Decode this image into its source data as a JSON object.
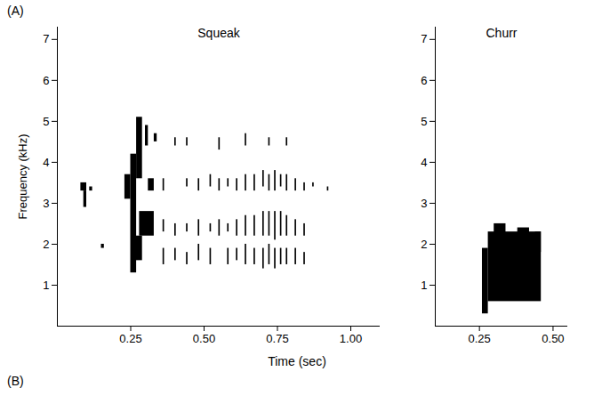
{
  "chart_data": [
    {
      "type": "spectrogram",
      "title": "Squeak",
      "xlabel": "Time (sec)",
      "ylabel": "Frequency (kHz)",
      "annotations": [
        "(A)",
        "(B)"
      ],
      "xlim": [
        0,
        1.1
      ],
      "xticks": [
        0.25,
        {
          "value": 0.5,
          "label": "0.50"
        },
        0.75,
        {
          "value": 1.0,
          "label": "1.00"
        }
      ],
      "ylim": [
        0,
        7.3
      ],
      "yticks": [
        1,
        2,
        3,
        4,
        5,
        6,
        7
      ],
      "color": "#000000",
      "grid": false,
      "energy": [
        [
          0.08,
          0.1,
          3.3,
          3.5
        ],
        [
          0.09,
          0.1,
          2.9,
          3.3
        ],
        [
          0.11,
          0.12,
          3.3,
          3.4
        ],
        [
          0.15,
          0.16,
          1.9,
          2.0
        ],
        [
          0.23,
          0.25,
          3.1,
          3.7
        ],
        [
          0.25,
          0.27,
          1.3,
          4.2
        ],
        [
          0.27,
          0.29,
          3.6,
          5.1
        ],
        [
          0.26,
          0.29,
          1.6,
          2.2
        ],
        [
          0.28,
          0.33,
          2.2,
          2.8
        ],
        [
          0.3,
          0.31,
          4.4,
          4.9
        ],
        [
          0.33,
          0.34,
          4.5,
          4.7
        ],
        [
          0.31,
          0.33,
          3.3,
          3.6
        ],
        [
          0.36,
          0.365,
          3.3,
          3.6
        ],
        [
          0.36,
          0.365,
          2.3,
          2.6
        ],
        [
          0.36,
          0.365,
          1.5,
          1.9
        ],
        [
          0.4,
          0.405,
          4.4,
          4.6
        ],
        [
          0.4,
          0.405,
          2.2,
          2.5
        ],
        [
          0.4,
          0.405,
          1.6,
          1.9
        ],
        [
          0.44,
          0.445,
          4.4,
          4.6
        ],
        [
          0.44,
          0.445,
          3.4,
          3.6
        ],
        [
          0.44,
          0.445,
          2.3,
          2.5
        ],
        [
          0.44,
          0.445,
          1.5,
          1.8
        ],
        [
          0.48,
          0.485,
          3.3,
          3.6
        ],
        [
          0.48,
          0.485,
          2.2,
          2.6
        ],
        [
          0.48,
          0.485,
          1.6,
          2.0
        ],
        [
          0.52,
          0.525,
          3.4,
          3.7
        ],
        [
          0.52,
          0.525,
          2.3,
          2.5
        ],
        [
          0.52,
          0.525,
          1.5,
          1.9
        ],
        [
          0.55,
          0.555,
          4.3,
          4.6
        ],
        [
          0.55,
          0.555,
          3.3,
          3.6
        ],
        [
          0.55,
          0.555,
          2.2,
          2.6
        ],
        [
          0.58,
          0.585,
          3.4,
          3.6
        ],
        [
          0.58,
          0.585,
          2.3,
          2.5
        ],
        [
          0.58,
          0.585,
          1.5,
          1.9
        ],
        [
          0.61,
          0.615,
          3.3,
          3.6
        ],
        [
          0.61,
          0.615,
          2.2,
          2.6
        ],
        [
          0.61,
          0.615,
          1.6,
          1.9
        ],
        [
          0.64,
          0.645,
          4.4,
          4.7
        ],
        [
          0.64,
          0.645,
          3.3,
          3.7
        ],
        [
          0.64,
          0.645,
          2.2,
          2.7
        ],
        [
          0.64,
          0.645,
          1.5,
          2.0
        ],
        [
          0.67,
          0.675,
          3.3,
          3.7
        ],
        [
          0.67,
          0.675,
          2.2,
          2.7
        ],
        [
          0.67,
          0.675,
          1.5,
          1.9
        ],
        [
          0.7,
          0.705,
          3.4,
          3.8
        ],
        [
          0.7,
          0.705,
          2.2,
          2.8
        ],
        [
          0.7,
          0.705,
          1.4,
          1.9
        ],
        [
          0.72,
          0.725,
          4.4,
          4.6
        ],
        [
          0.72,
          0.725,
          3.3,
          3.7
        ],
        [
          0.72,
          0.725,
          2.2,
          2.8
        ],
        [
          0.72,
          0.725,
          1.5,
          2.0
        ],
        [
          0.74,
          0.745,
          3.3,
          3.8
        ],
        [
          0.74,
          0.745,
          2.1,
          2.8
        ],
        [
          0.74,
          0.745,
          1.4,
          1.9
        ],
        [
          0.76,
          0.765,
          3.4,
          3.7
        ],
        [
          0.76,
          0.765,
          2.2,
          2.8
        ],
        [
          0.76,
          0.765,
          1.5,
          1.9
        ],
        [
          0.78,
          0.785,
          4.4,
          4.6
        ],
        [
          0.78,
          0.785,
          3.3,
          3.7
        ],
        [
          0.78,
          0.785,
          2.2,
          2.7
        ],
        [
          0.78,
          0.785,
          1.5,
          1.9
        ],
        [
          0.81,
          0.815,
          3.3,
          3.6
        ],
        [
          0.81,
          0.815,
          2.2,
          2.6
        ],
        [
          0.81,
          0.815,
          1.5,
          1.9
        ],
        [
          0.84,
          0.845,
          3.3,
          3.5
        ],
        [
          0.84,
          0.845,
          2.2,
          2.5
        ],
        [
          0.84,
          0.845,
          1.5,
          1.8
        ],
        [
          0.87,
          0.875,
          3.4,
          3.5
        ],
        [
          0.92,
          0.925,
          3.3,
          3.4
        ]
      ]
    },
    {
      "type": "spectrogram",
      "title": "Churr",
      "xlim": [
        0.1,
        0.55
      ],
      "xticks": [
        0.25,
        {
          "value": 0.5,
          "label": "0.50"
        }
      ],
      "ylim": [
        0,
        7.3
      ],
      "yticks": [
        1,
        2,
        3,
        4,
        5,
        6,
        7
      ],
      "color": "#000000",
      "grid": false,
      "energy": [
        [
          0.26,
          0.28,
          0.3,
          1.9
        ],
        [
          0.28,
          0.46,
          0.6,
          2.3
        ],
        [
          0.3,
          0.34,
          2.2,
          2.5
        ],
        [
          0.38,
          0.42,
          2.1,
          2.4
        ],
        [
          0.44,
          0.46,
          1.8,
          2.3
        ]
      ]
    }
  ]
}
